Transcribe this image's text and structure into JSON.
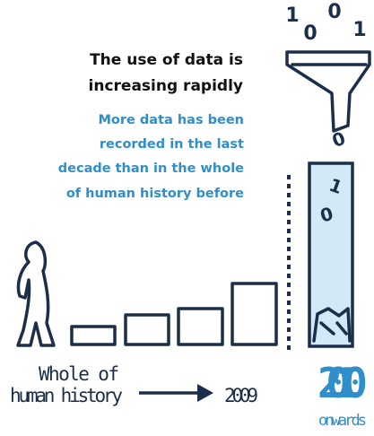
{
  "heading": {
    "lines": [
      "The use of data is",
      "increasing rapidly"
    ]
  },
  "subheading": {
    "lines": [
      "More data has been",
      "recorded in the last",
      "decade than in the whole",
      "of human history before"
    ]
  },
  "timeline": {
    "start": [
      "Whole of",
      "human history"
    ],
    "middle": "2009",
    "end": "2010",
    "end_note": "onwards"
  },
  "digits": {
    "top": [
      "1",
      "0",
      "0",
      "1"
    ],
    "falling": [
      "0",
      "1",
      "0"
    ]
  }
}
